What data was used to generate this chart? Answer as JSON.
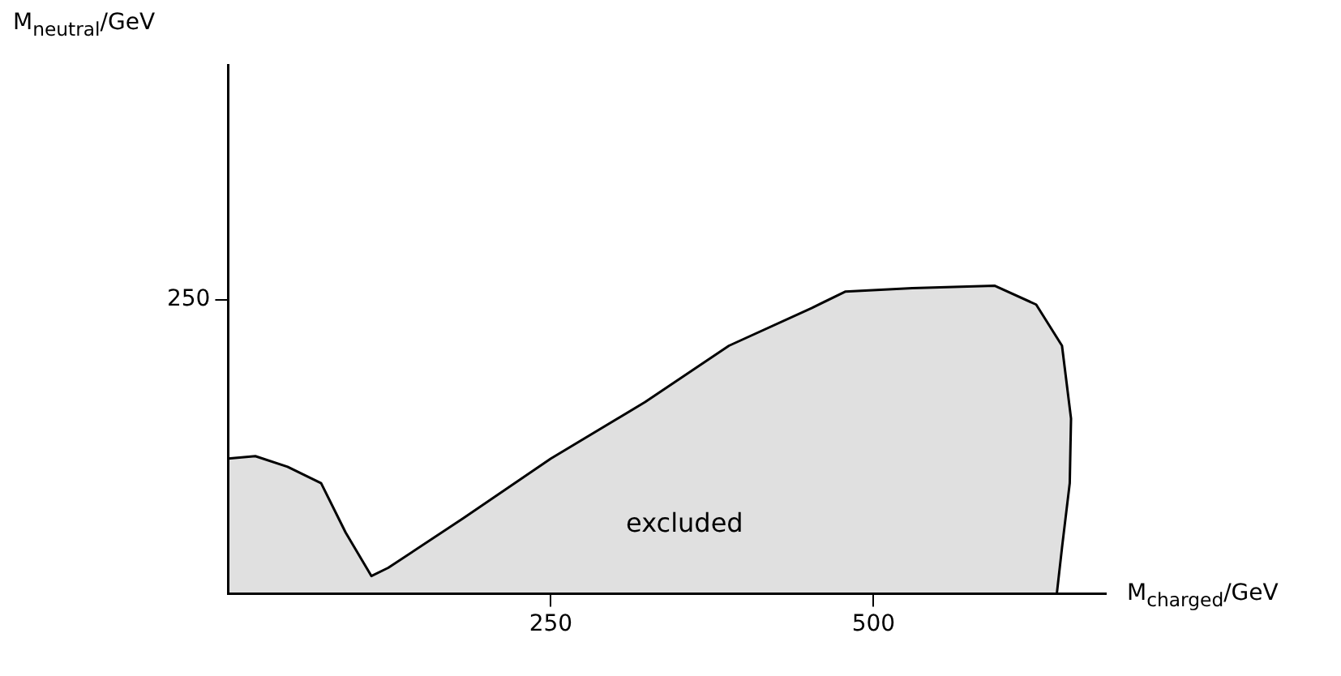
{
  "chart_data": {
    "type": "area",
    "xlabel": "M$_{charged}$/GeV",
    "ylabel": "M$_{neutral}$/GeV",
    "x": [
      0,
      21,
      46,
      72,
      91,
      111,
      124,
      182,
      250,
      323,
      388,
      452,
      478,
      530,
      594,
      626,
      646,
      653,
      652,
      646,
      642
    ],
    "series": [
      {
        "color": "#000000",
        "values": [
          115,
          117,
          108,
          94,
          52,
          15,
          22,
          64,
          115,
          163,
          211,
          243,
          257,
          260,
          262,
          246,
          211,
          149,
          94,
          39,
          0
        ]
      }
    ],
    "xlim": [
      0,
      680
    ],
    "ylim": [
      0,
      450
    ],
    "xticks": [
      250,
      500
    ],
    "yticks": [
      250
    ],
    "grid": false,
    "legend": false,
    "marker": "none",
    "line_style": "solid",
    "annotations": [
      "excluded"
    ]
  }
}
